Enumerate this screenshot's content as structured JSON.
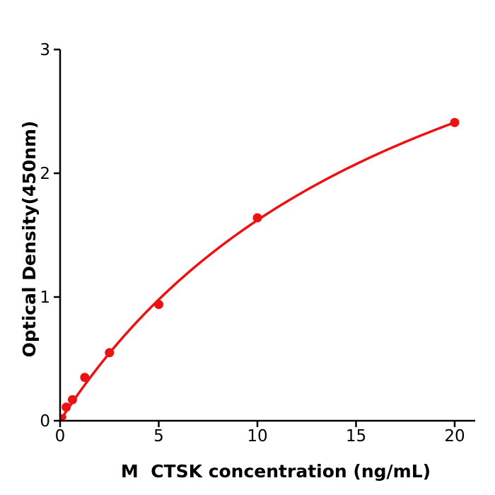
{
  "chart_data": {
    "type": "scatter",
    "title": "",
    "xlabel": "M  CTSK concentration (ng/mL)",
    "ylabel": "Optical Density(450nm)",
    "series": [
      {
        "name": "standard-curve-points",
        "x": [
          0.156,
          0.313,
          0.625,
          1.25,
          2.5,
          5,
          10,
          20
        ],
        "y": [
          0.03,
          0.11,
          0.17,
          0.35,
          0.55,
          0.94,
          1.64,
          2.41
        ]
      }
    ],
    "fit": {
      "model": "saturation",
      "description": "OD = a*c/(b+c)",
      "a": 4.7,
      "b": 19.0,
      "x_start": 0,
      "x_end": 20
    },
    "xticks": [
      0,
      5,
      10,
      15,
      20
    ],
    "yticks": [
      0,
      1,
      2,
      3
    ],
    "xlim": [
      0,
      21.04
    ],
    "ylim": [
      0,
      3
    ],
    "grid": false,
    "legend": "none",
    "colors": {
      "marker": "#ee1111",
      "line": "#ee1111",
      "axis": "#000000",
      "background": "#ffffff"
    }
  }
}
